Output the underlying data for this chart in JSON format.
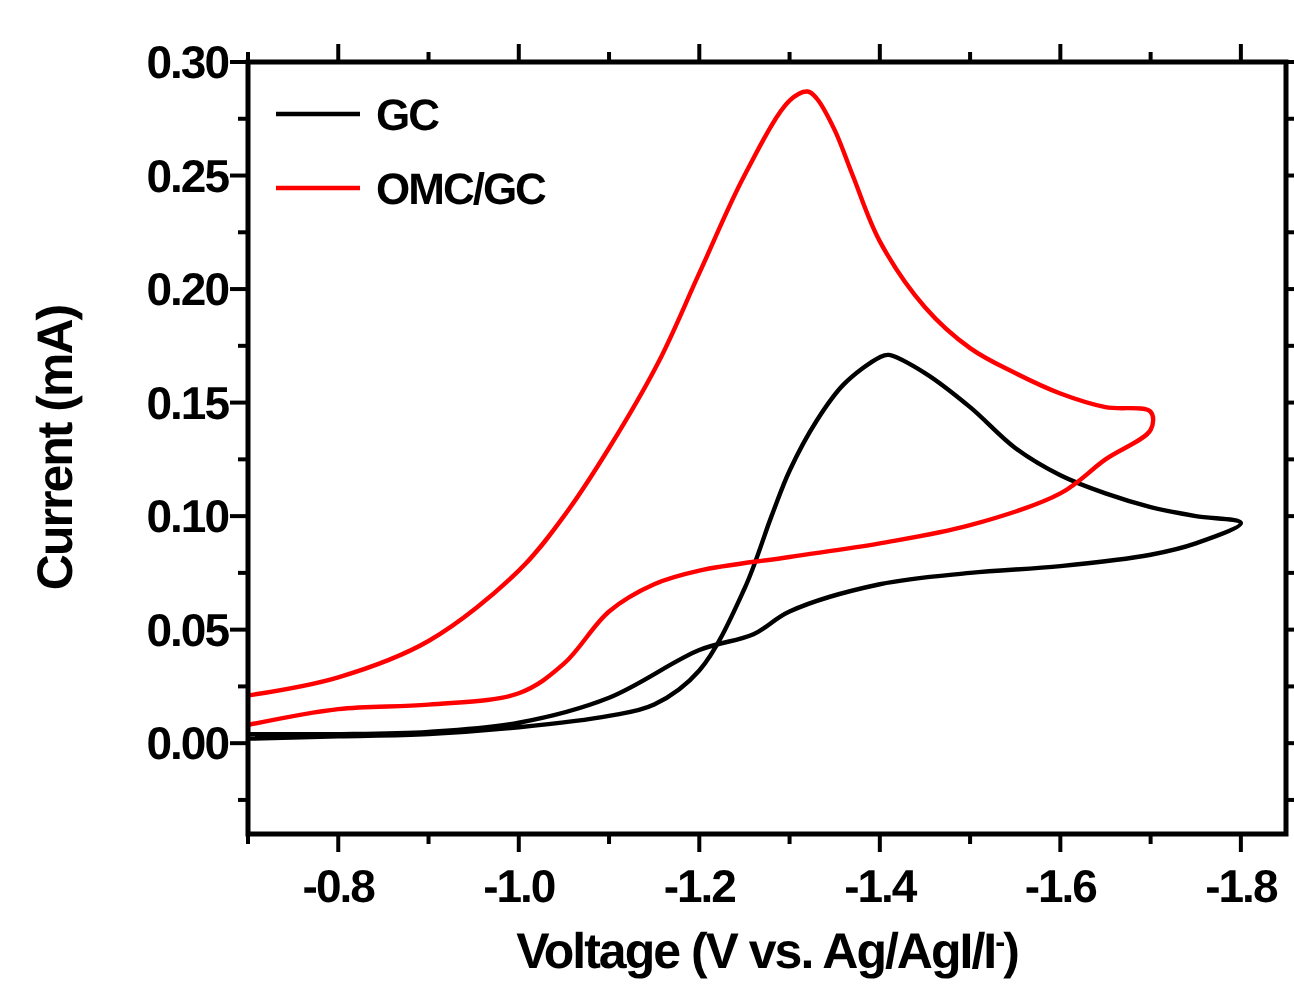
{
  "chart_data": {
    "type": "line",
    "xlabel": "Voltage (V vs. Ag/AgI/I$^{-}$)",
    "ylabel": "Current (mA)",
    "xlim": [
      -0.7,
      -1.85
    ],
    "ylim": [
      -0.04,
      0.3
    ],
    "xticks": [
      {
        "value": -0.7,
        "label": null
      },
      {
        "value": -0.8,
        "label": "-0.8"
      },
      {
        "value": -0.9,
        "label": null
      },
      {
        "value": -1.0,
        "label": "-1.0"
      },
      {
        "value": -1.1,
        "label": null
      },
      {
        "value": -1.2,
        "label": "-1.2"
      },
      {
        "value": -1.3,
        "label": null
      },
      {
        "value": -1.4,
        "label": "-1.4"
      },
      {
        "value": -1.5,
        "label": null
      },
      {
        "value": -1.6,
        "label": "-1.6"
      },
      {
        "value": -1.7,
        "label": null
      },
      {
        "value": -1.8,
        "label": "-1.8"
      }
    ],
    "yticks": [
      {
        "value": -0.025,
        "label": null
      },
      {
        "value": 0,
        "label": "0.00"
      },
      {
        "value": 0.025,
        "label": null
      },
      {
        "value": 0.05,
        "label": "0.05"
      },
      {
        "value": 0.075,
        "label": null
      },
      {
        "value": 0.1,
        "label": "0.10"
      },
      {
        "value": 0.125,
        "label": null
      },
      {
        "value": 0.15,
        "label": "0.15"
      },
      {
        "value": 0.175,
        "label": null
      },
      {
        "value": 0.2,
        "label": "0.20"
      },
      {
        "value": 0.225,
        "label": null
      },
      {
        "value": 0.25,
        "label": "0.25"
      },
      {
        "value": 0.275,
        "label": null
      },
      {
        "value": 0.3,
        "label": "0.30"
      }
    ],
    "grid": false,
    "legend": "top left",
    "marker": "none",
    "line_style": "solid",
    "series": [
      {
        "name": "GC",
        "color": "#000000",
        "x": [
          -0.7,
          -0.8,
          -0.9,
          -1.0,
          -1.1,
          -1.15,
          -1.2,
          -1.25,
          -1.28,
          -1.3,
          -1.33,
          -1.36,
          -1.4,
          -1.41,
          -1.45,
          -1.5,
          -1.55,
          -1.6,
          -1.65,
          -1.7,
          -1.75,
          -1.8,
          -1.75,
          -1.7,
          -1.6,
          -1.5,
          -1.4,
          -1.3,
          -1.26,
          -1.2,
          -1.1,
          -1.0,
          -0.9,
          -0.8,
          -0.7
        ],
        "values": [
          0.002,
          0.003,
          0.004,
          0.007,
          0.012,
          0.017,
          0.032,
          0.068,
          0.1,
          0.12,
          0.142,
          0.158,
          0.17,
          0.171,
          0.163,
          0.148,
          0.13,
          0.118,
          0.11,
          0.104,
          0.1,
          0.097,
          0.088,
          0.083,
          0.078,
          0.075,
          0.07,
          0.058,
          0.048,
          0.041,
          0.02,
          0.009,
          0.005,
          0.004,
          0.004
        ]
      },
      {
        "name": "OMC/GC",
        "color": "#ff0000",
        "x": [
          -0.7,
          -0.8,
          -0.9,
          -1.0,
          -1.05,
          -1.1,
          -1.15,
          -1.2,
          -1.3,
          -1.4,
          -1.5,
          -1.6,
          -1.65,
          -1.7,
          -1.7,
          -1.65,
          -1.6,
          -1.55,
          -1.5,
          -1.45,
          -1.4,
          -1.37,
          -1.35,
          -1.33,
          -1.32,
          -1.3,
          -1.25,
          -1.2,
          -1.155,
          -1.1,
          -1.05,
          -1.0,
          -0.9,
          -0.8,
          -0.7
        ],
        "values": [
          0.008,
          0.015,
          0.017,
          0.022,
          0.035,
          0.058,
          0.07,
          0.076,
          0.082,
          0.088,
          0.096,
          0.11,
          0.125,
          0.138,
          0.146,
          0.148,
          0.154,
          0.163,
          0.174,
          0.192,
          0.221,
          0.25,
          0.27,
          0.284,
          0.287,
          0.283,
          0.25,
          0.207,
          0.168,
          0.13,
          0.1,
          0.076,
          0.045,
          0.029,
          0.021
        ]
      }
    ]
  }
}
